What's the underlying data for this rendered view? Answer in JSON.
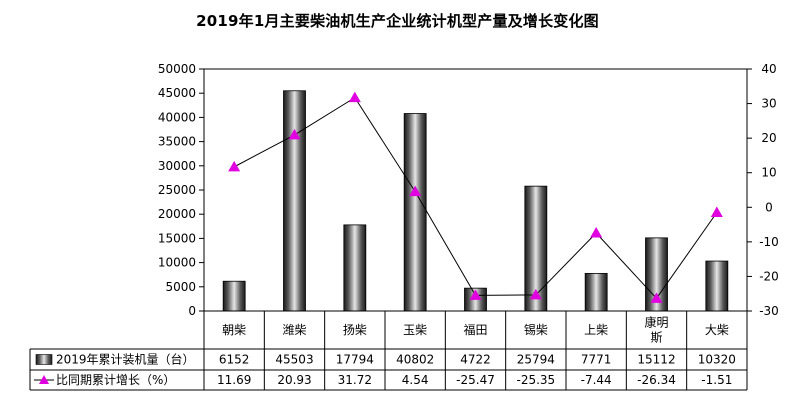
{
  "chart_data": {
    "type": "bar",
    "title": "2019年1月主要柴油机生产企业统计机型产量及增长变化图",
    "categories": [
      [
        "朝柴"
      ],
      [
        "潍柴"
      ],
      [
        "扬柴"
      ],
      [
        "玉柴"
      ],
      [
        "福田"
      ],
      [
        "锡柴"
      ],
      [
        "上柴"
      ],
      [
        "康明",
        "斯"
      ],
      [
        "大柴"
      ]
    ],
    "series": [
      {
        "name": "2019年累计装机量（台）",
        "type": "bar",
        "axis": "left",
        "values": [
          6152,
          45503,
          17794,
          40802,
          4722,
          25794,
          7771,
          15112,
          10320
        ],
        "labels": [
          "6152",
          "45503",
          "17794",
          "40802",
          "4722",
          "25794",
          "7771",
          "15112",
          "10320"
        ]
      },
      {
        "name": "比同期累计增长（%）",
        "type": "line",
        "axis": "right",
        "values": [
          11.69,
          20.93,
          31.72,
          4.54,
          -25.47,
          -25.35,
          -7.44,
          -26.34,
          -1.51
        ],
        "labels": [
          "11.69",
          "20.93",
          "31.72",
          "4.54",
          "-25.47",
          "-25.35",
          "-7.44",
          "-26.34",
          "-1.51"
        ]
      }
    ],
    "y_left": {
      "min": 0,
      "max": 50000,
      "step": 5000,
      "ticks": [
        "0",
        "5000",
        "10000",
        "15000",
        "20000",
        "25000",
        "30000",
        "35000",
        "40000",
        "45000",
        "50000"
      ]
    },
    "y_right": {
      "min": -30,
      "max": 40,
      "step": 10,
      "ticks": [
        "-30",
        "-20",
        "-10",
        "0",
        "10",
        "20",
        "30",
        "40"
      ]
    },
    "grid": false,
    "legend": "data-table-bottom",
    "colors": {
      "bar_dark": "#1a1a1a",
      "bar_light": "#e6e6e6",
      "line": "#000000",
      "marker": "#e000e0"
    }
  }
}
